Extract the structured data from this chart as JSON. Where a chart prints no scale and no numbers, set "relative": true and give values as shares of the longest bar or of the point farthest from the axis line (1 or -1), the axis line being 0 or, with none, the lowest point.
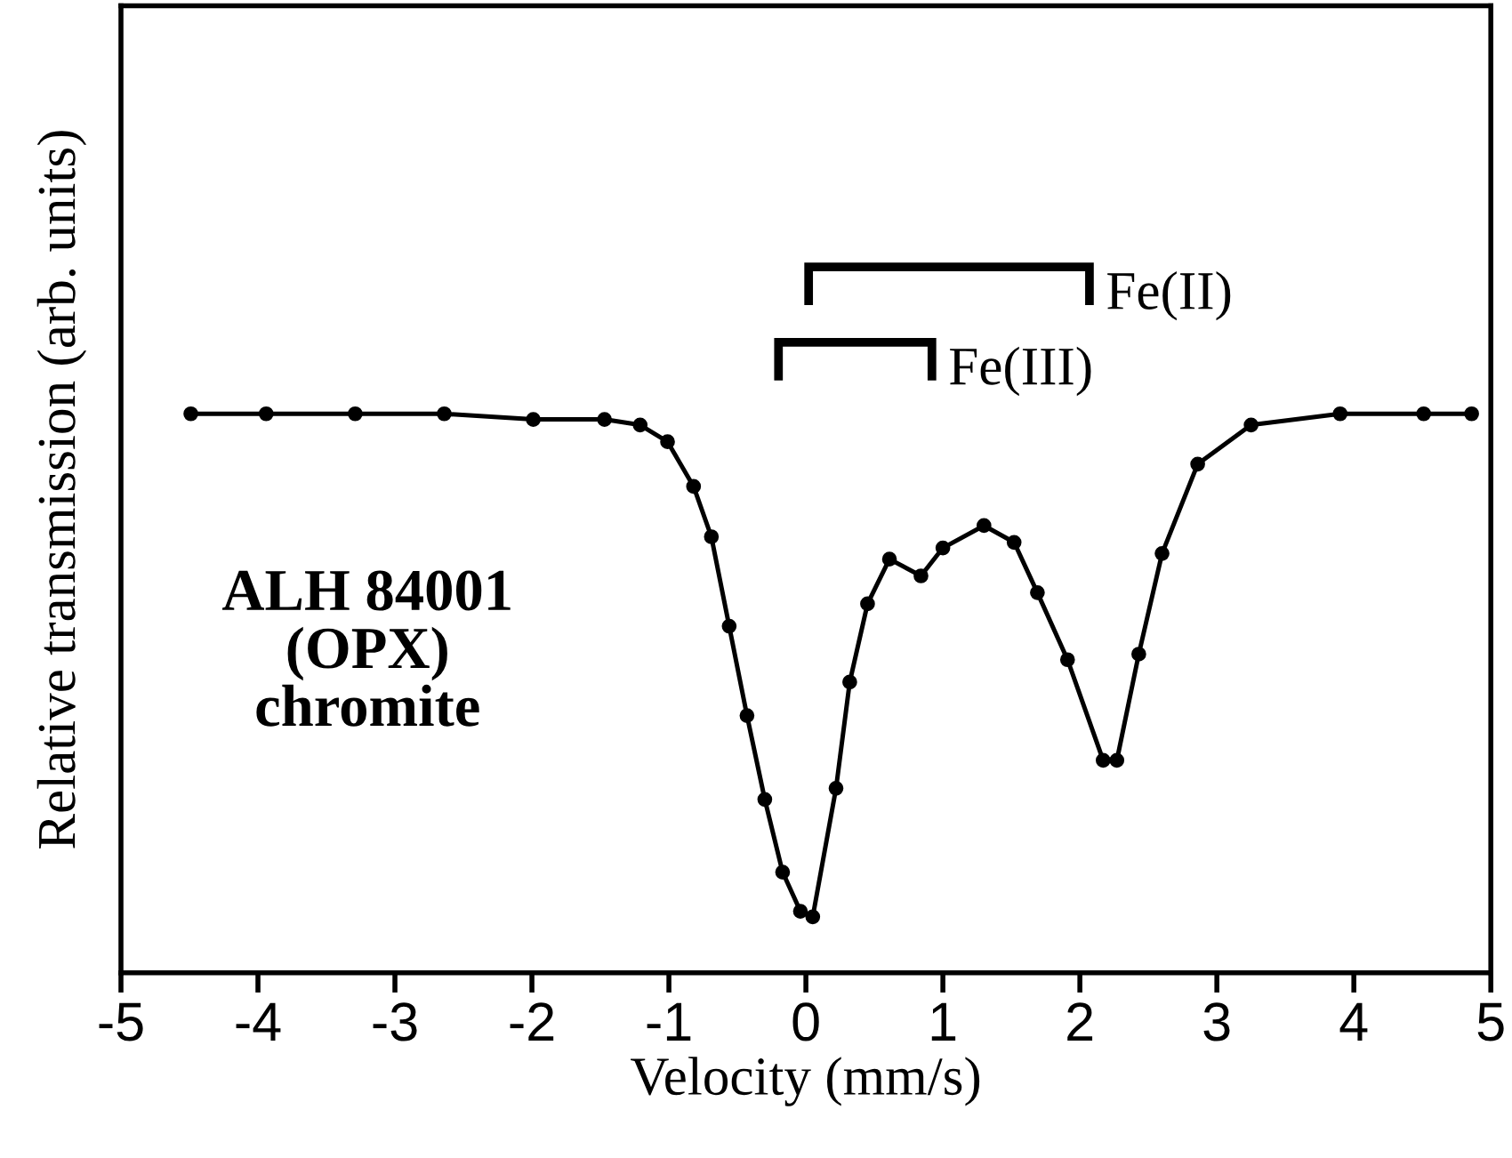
{
  "chart_data": {
    "type": "line",
    "relative": true,
    "xlabel": "Velocity (mm/s)",
    "ylabel": "Relative transmission (arb. units)",
    "x": [
      -4.49,
      -3.94,
      -3.29,
      -2.64,
      -1.99,
      -1.47,
      -1.21,
      -1.01,
      -0.82,
      -0.69,
      -0.56,
      -0.43,
      -0.3,
      -0.17,
      -0.04,
      0.05,
      0.22,
      0.32,
      0.45,
      0.61,
      0.84,
      1.0,
      1.3,
      1.52,
      1.69,
      1.91,
      2.17,
      2.27,
      2.43,
      2.6,
      2.86,
      3.25,
      3.9,
      4.51,
      4.86
    ],
    "series": [
      {
        "color": "#000000",
        "values": [
          1.0,
          1.0,
          1.0,
          1.0,
          0.99,
          0.99,
          0.98,
          0.95,
          0.87,
          0.78,
          0.62,
          0.46,
          0.31,
          0.18,
          0.11,
          0.1,
          0.33,
          0.52,
          0.66,
          0.74,
          0.71,
          0.76,
          0.8,
          0.77,
          0.68,
          0.56,
          0.38,
          0.38,
          0.57,
          0.75,
          0.91,
          0.98,
          1.0,
          1.0,
          1.0
        ]
      }
    ],
    "xlim": [
      -5,
      5
    ],
    "xticks": [
      -5,
      -4,
      -3,
      -2,
      -1,
      0,
      1,
      2,
      3,
      4,
      5
    ],
    "marker": "circle",
    "line_style": "solid",
    "grid": false,
    "legend": false,
    "tick_labels": "x",
    "annotations": [
      "Fe(II)",
      "Fe(III)",
      "ALH 84001\n(OPX)\nchromite"
    ]
  }
}
